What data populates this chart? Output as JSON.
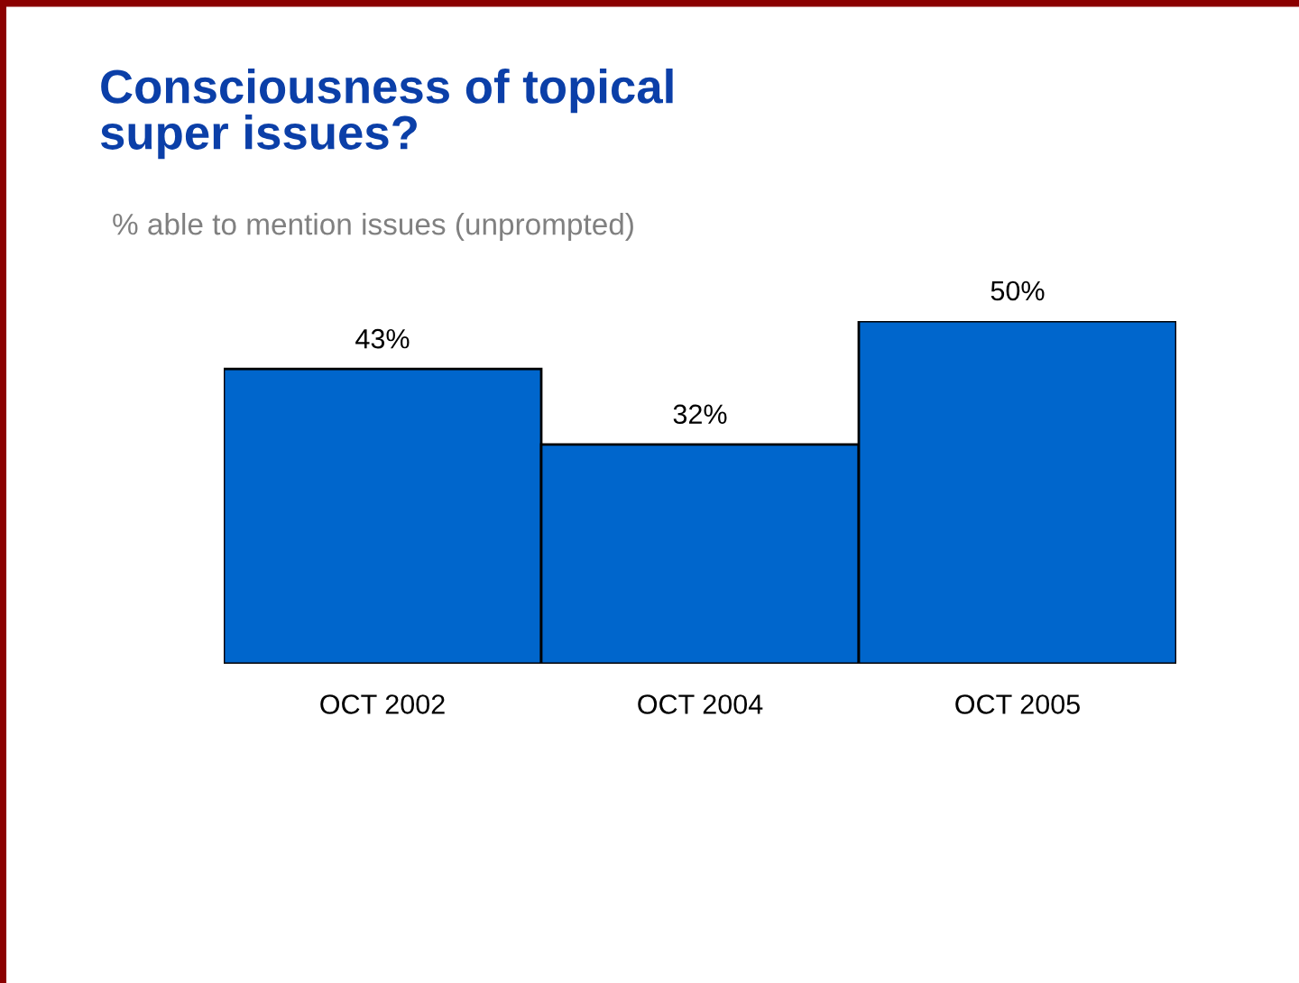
{
  "chart_data": {
    "type": "bar",
    "title": "Consciousness of topical\nsuper issues?",
    "subtitle": "% able to mention issues (unprompted)",
    "categories": [
      "OCT 2002",
      "OCT 2004",
      "OCT 2005"
    ],
    "values": [
      43,
      32,
      50
    ],
    "value_labels": [
      "43%",
      "32%",
      "50%"
    ],
    "color": "#0066cc",
    "grid": false,
    "legend": false
  }
}
